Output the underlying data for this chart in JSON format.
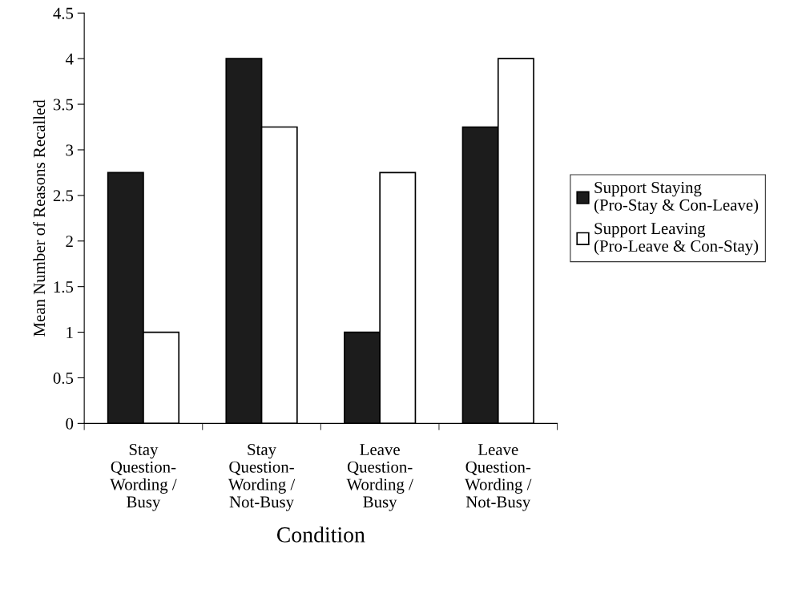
{
  "chart_data": {
    "type": "bar",
    "xlabel": "Condition",
    "ylabel": "Mean Number of Reasons Recalled",
    "categories": [
      "Stay\nQuestion-\nWording /\nBusy",
      "Stay\nQuestion-\nWording /\nNot-Busy",
      "Leave\nQuestion-\nWording /\nBusy",
      "Leave\nQuestion-\nWording /\nNot-Busy"
    ],
    "series": [
      {
        "name": "Support Staying\n(Pro-Stay & Con-Leave)",
        "color": "#1c1c1c",
        "values": [
          2.75,
          4,
          1,
          3.25
        ]
      },
      {
        "name": "Support Leaving\n(Pro-Leave & Con-Stay)",
        "color": "#ffffff",
        "values": [
          1,
          3.25,
          2.75,
          4
        ]
      }
    ],
    "ylim": [
      0,
      4.5
    ],
    "yticks": [
      0,
      0.5,
      1,
      1.5,
      2,
      2.5,
      3,
      3.5,
      4,
      4.5
    ],
    "grid": false,
    "legend": "right"
  }
}
